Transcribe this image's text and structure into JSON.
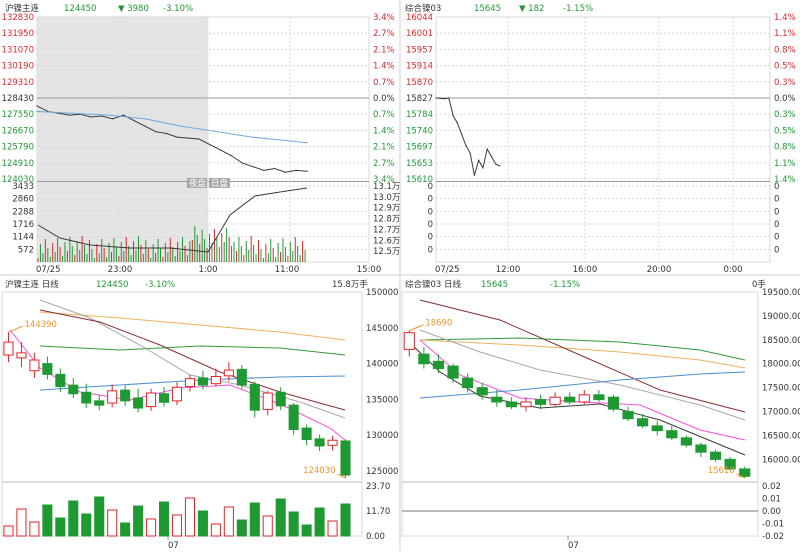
{
  "colors": {
    "up": "#e0262a",
    "down": "#1f9a33",
    "grid": "#d8d8d8",
    "price": "#3a3a3a",
    "avg": "#6fa8dc",
    "shade": "#e4e4e4",
    "orange": "#f5922a"
  },
  "panels": {
    "tl": {
      "name": "沪镍主连",
      "price": "124450",
      "change": "▼ 3980",
      "pct": "-3.10%",
      "y_labels": [
        "132830",
        "131950",
        "131070",
        "130190",
        "129310",
        "128430",
        "127550",
        "126670",
        "125790",
        "124910",
        "124030"
      ],
      "pct_labels": [
        "3.4%",
        "2.7%",
        "2.1%",
        "1.4%",
        "0.7%",
        "0.0%",
        "0.7%",
        "1.4%",
        "2.1%",
        "2.7%",
        "3.4%"
      ],
      "vol_labels": [
        "3433",
        "2860",
        "2288",
        "1716",
        "1144",
        "572"
      ],
      "vol_right": [
        "13.1万",
        "13.0万",
        "12.9万",
        "12.8万",
        "12.7万",
        "12.6万",
        "12.5万"
      ],
      "x_labels": [
        "07/25",
        "23:00",
        "1:00",
        "11:00",
        "15:00"
      ],
      "tags": [
        "夜盘",
        "日盘"
      ]
    },
    "tr": {
      "name": "综合镍03",
      "price": "15645",
      "change": "▼ 182",
      "pct": "-1.15%",
      "y_labels": [
        "16044",
        "16001",
        "15957",
        "15914",
        "15870",
        "15827",
        "15784",
        "15740",
        "15697",
        "15653",
        "15610"
      ],
      "pct_labels": [
        "1.4%",
        "1.1%",
        "0.8%",
        "0.5%",
        "0.3%",
        "0.0%",
        "0.3%",
        "0.5%",
        "0.8%",
        "1.1%",
        "1.4%"
      ],
      "vol_labels": [
        "0",
        "0",
        "0",
        "0",
        "0",
        "0"
      ],
      "vol_right": [
        "0",
        "0",
        "0",
        "0",
        "0",
        "0"
      ],
      "x_labels": [
        "07/25",
        "12:00",
        "16:00",
        "20:00",
        "0:00"
      ]
    },
    "bl": {
      "name": "沪镍主连 日线",
      "price": "124450",
      "pct": "-3.10%",
      "vol": "15.8万手",
      "y_labels": [
        "150000",
        "145000",
        "140000",
        "135000",
        "130000",
        "125000"
      ],
      "vol_labels": [
        "23.70",
        "11.70",
        "0.00"
      ],
      "x_label": "07",
      "hi": "144390",
      "lo": "124030"
    },
    "br": {
      "name": "综合镍03 日线",
      "price": "15645",
      "pct": "-1.15%",
      "vol": "0手",
      "y_labels": [
        "19500.00",
        "19000.00",
        "18500.00",
        "18000.00",
        "17500.00",
        "17000.00",
        "16500.00",
        "16000.00"
      ],
      "vol_labels": [
        "0.02",
        "0.01",
        "0.00",
        "-0.01",
        "-0.02"
      ],
      "x_label": "07",
      "hi": "18690",
      "lo": "15610"
    }
  },
  "chart_data": [
    {
      "type": "line",
      "panel": "tl",
      "title": "沪镍主连",
      "ylim": [
        124030,
        132830
      ],
      "prev_close": 128430,
      "series": [
        {
          "values": [
            128000,
            127700,
            127600,
            127500,
            127550,
            127400,
            127450,
            127300,
            127500,
            127200,
            126900,
            126600,
            126500,
            126300,
            126250,
            126200,
            125900,
            125600,
            125300,
            124900,
            124700,
            124500,
            124600,
            124400,
            124500,
            124450
          ]
        },
        {
          "values": [
            127700,
            127650,
            127600,
            127550,
            127500,
            127400,
            127300,
            127100,
            126900,
            126750,
            126600,
            126450,
            126300,
            126200,
            126100,
            126000
          ]
        }
      ]
    },
    {
      "type": "line",
      "panel": "tr",
      "title": "综合镍03",
      "ylim": [
        15610,
        16044
      ],
      "prev_close": 15827,
      "series": [
        {
          "values": [
            15827,
            15826,
            15825,
            15827,
            15780,
            15760,
            15730,
            15700,
            15680,
            15620,
            15660,
            15640,
            15690,
            15670,
            15650,
            15645
          ]
        }
      ]
    },
    {
      "type": "bar",
      "panel": "bl",
      "title": "沪镍主连 日线",
      "ylim": [
        124030,
        150000
      ],
      "candles": [
        [
          141200,
          143000,
          144390,
          140200
        ],
        [
          140800,
          141500,
          143000,
          139500
        ],
        [
          139000,
          140500,
          141500,
          138000
        ],
        [
          140000,
          138500,
          141000,
          137800
        ],
        [
          138500,
          136800,
          139300,
          136000
        ],
        [
          137000,
          135800,
          138000,
          135200
        ],
        [
          136000,
          134500,
          137200,
          133800
        ],
        [
          134800,
          134200,
          135600,
          133500
        ],
        [
          134500,
          136200,
          137100,
          133900
        ],
        [
          136300,
          134800,
          137000,
          134100
        ],
        [
          135200,
          133800,
          136500,
          133200
        ],
        [
          134000,
          135900,
          136500,
          133400
        ],
        [
          135800,
          134600,
          136700,
          134000
        ],
        [
          134800,
          136700,
          137400,
          134200
        ],
        [
          136800,
          137900,
          138400,
          136100
        ],
        [
          138000,
          137000,
          139000,
          136400
        ],
        [
          137200,
          138200,
          139300,
          136800
        ],
        [
          138300,
          139100,
          140200,
          137500
        ],
        [
          139200,
          137000,
          139800,
          136500
        ],
        [
          137100,
          133500,
          137500,
          132500
        ],
        [
          133600,
          135900,
          136200,
          132800
        ],
        [
          136000,
          134100,
          136700,
          133500
        ],
        [
          134200,
          130800,
          134500,
          130100
        ],
        [
          131000,
          129400,
          131500,
          128600
        ],
        [
          129500,
          128500,
          130100,
          127800
        ],
        [
          128600,
          129300,
          129900,
          127900
        ],
        [
          129200,
          124450,
          129400,
          124030
        ]
      ]
    },
    {
      "type": "bar",
      "panel": "br",
      "title": "综合镍03 日线",
      "ylim": [
        15610,
        19500
      ],
      "candles": [
        [
          18300,
          18650,
          18690,
          18150
        ],
        [
          18200,
          18000,
          18350,
          17900
        ],
        [
          18050,
          17900,
          18200,
          17800
        ],
        [
          17950,
          17700,
          18000,
          17600
        ],
        [
          17700,
          17500,
          17800,
          17400
        ],
        [
          17500,
          17350,
          17600,
          17250
        ],
        [
          17300,
          17200,
          17450,
          17100
        ],
        [
          17200,
          17100,
          17300,
          17050
        ],
        [
          17100,
          17200,
          17300,
          17000
        ],
        [
          17250,
          17150,
          17350,
          17050
        ],
        [
          17150,
          17300,
          17400,
          17100
        ],
        [
          17300,
          17200,
          17400,
          17150
        ],
        [
          17200,
          17350,
          17450,
          17150
        ],
        [
          17350,
          17250,
          17450,
          17200
        ],
        [
          17300,
          17050,
          17350,
          17000
        ],
        [
          17000,
          16850,
          17100,
          16800
        ],
        [
          16850,
          16700,
          16950,
          16650
        ],
        [
          16700,
          16600,
          16800,
          16500
        ],
        [
          16600,
          16450,
          16700,
          16400
        ],
        [
          16450,
          16300,
          16500,
          16250
        ],
        [
          16300,
          16150,
          16350,
          16050
        ],
        [
          16150,
          16000,
          16200,
          15950
        ],
        [
          16000,
          15800,
          16050,
          15750
        ],
        [
          15800,
          15645,
          15850,
          15610
        ]
      ]
    }
  ]
}
